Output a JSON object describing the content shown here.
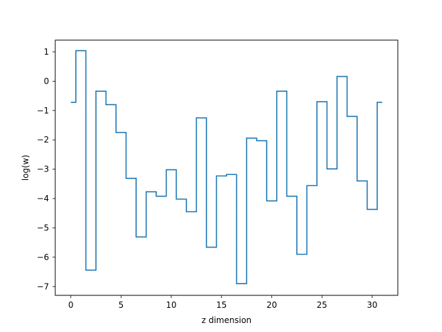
{
  "chart_data": {
    "type": "line",
    "drawstyle": "steps-mid",
    "title": "",
    "xlabel": "z dimension",
    "ylabel": "log(w)",
    "xlim": [
      -1.55,
      32.55
    ],
    "ylim": [
      -7.3,
      1.4
    ],
    "xticks": [
      0,
      5,
      10,
      15,
      20,
      25,
      30
    ],
    "yticks": [
      -7,
      -6,
      -5,
      -4,
      -3,
      -2,
      -1,
      0,
      1
    ],
    "grid": false,
    "legend": "none",
    "line_color": "#1f77b4",
    "x": [
      0,
      1,
      2,
      3,
      4,
      5,
      6,
      7,
      8,
      9,
      10,
      11,
      12,
      13,
      14,
      15,
      16,
      17,
      18,
      19,
      20,
      21,
      22,
      23,
      24,
      25,
      26,
      27,
      28,
      29,
      30,
      31
    ],
    "y": [
      -0.72,
      1.04,
      -6.44,
      -0.34,
      -0.8,
      -1.75,
      -3.31,
      -5.31,
      -3.77,
      -3.92,
      -3.02,
      -4.02,
      -4.45,
      -1.25,
      -5.66,
      -3.23,
      -3.18,
      -6.9,
      -1.94,
      -2.03,
      -4.08,
      -0.34,
      -3.92,
      -5.9,
      -3.56,
      -0.7,
      -2.99,
      0.16,
      -1.2,
      -3.4,
      -4.37,
      -0.72
    ]
  }
}
